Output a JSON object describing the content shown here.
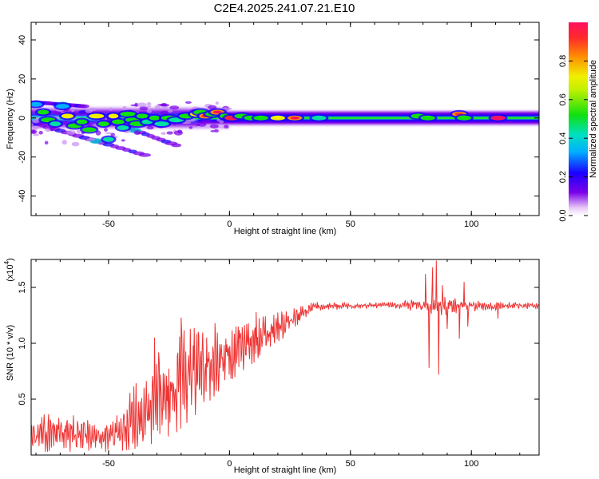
{
  "title": "C2E4.2025.241.07.21.E10",
  "colorscale": [
    "#e8c8f8",
    "#7b00e8",
    "#1a00ff",
    "#00b0ff",
    "#00e0a0",
    "#10e010",
    "#f0f000",
    "#ff9000",
    "#ff2a2a",
    "#ff1060"
  ],
  "line_color": "#ee3333",
  "chart_data": [
    {
      "type": "heatmap",
      "title": "C2E4.2025.241.07.21.E10",
      "xlabel": "Height of straight line (km)",
      "ylabel": "Frequency (Hz)",
      "xlim": [
        -82,
        128
      ],
      "ylim": [
        -50,
        49
      ],
      "xticks": [
        -50,
        0,
        50,
        100
      ],
      "yticks": [
        -40,
        -20,
        0,
        20,
        40
      ],
      "xtick_labels": [
        "-50",
        "0",
        "50",
        "100"
      ],
      "ytick_labels": [
        "-40",
        "-20",
        "0",
        "20",
        "40"
      ],
      "colorbar": {
        "label": "Normalized spectral amplitude",
        "range": [
          0,
          1
        ],
        "ticks": [
          0.0,
          0.2,
          0.4,
          0.6,
          0.8
        ],
        "tick_labels": [
          "0.0",
          "0.2",
          "0.4",
          "0.6",
          "0.8"
        ]
      },
      "main_band": {
        "center_freq": 0,
        "halfwidth_left": 7,
        "halfwidth_right": 5,
        "clean_from": 0
      },
      "blobs": [
        {
          "x": -80,
          "y": 7,
          "a": 0.3
        },
        {
          "x": -77,
          "y": 3,
          "a": 0.6
        },
        {
          "x": -75,
          "y": -1,
          "a": 0.55
        },
        {
          "x": -72,
          "y": -3,
          "a": 0.45
        },
        {
          "x": -69,
          "y": 6,
          "a": 0.3
        },
        {
          "x": -67,
          "y": 1,
          "a": 0.7
        },
        {
          "x": -64,
          "y": -4,
          "a": 0.6
        },
        {
          "x": -61,
          "y": -2,
          "a": 0.5
        },
        {
          "x": -58,
          "y": -6,
          "a": 0.55
        },
        {
          "x": -55,
          "y": 1,
          "a": 0.7
        },
        {
          "x": -52,
          "y": -3,
          "a": 0.55
        },
        {
          "x": -50,
          "y": -11,
          "a": 0.4
        },
        {
          "x": -48,
          "y": 1,
          "a": 0.65
        },
        {
          "x": -46,
          "y": -2,
          "a": 0.5
        },
        {
          "x": -44,
          "y": -5,
          "a": 0.45
        },
        {
          "x": -42,
          "y": 2,
          "a": 0.6
        },
        {
          "x": -40,
          "y": -1,
          "a": 0.55
        },
        {
          "x": -38,
          "y": -3,
          "a": 0.5
        },
        {
          "x": -36,
          "y": 1,
          "a": 0.55
        },
        {
          "x": -34,
          "y": -2,
          "a": 0.45
        },
        {
          "x": -31,
          "y": 0,
          "a": 0.5
        },
        {
          "x": -28,
          "y": -3,
          "a": 0.45
        },
        {
          "x": -25,
          "y": 0,
          "a": 0.5
        },
        {
          "x": -22,
          "y": -1,
          "a": 0.45
        },
        {
          "x": -18,
          "y": 1,
          "a": 0.55
        },
        {
          "x": -14,
          "y": 2,
          "a": 0.7
        },
        {
          "x": -12,
          "y": 3,
          "a": 0.5
        },
        {
          "x": -10,
          "y": 1,
          "a": 0.75
        },
        {
          "x": -7,
          "y": 2,
          "a": 0.6
        },
        {
          "x": -5,
          "y": 3,
          "a": 0.8
        },
        {
          "x": -2,
          "y": 1,
          "a": 0.6
        },
        {
          "x": 1,
          "y": 0,
          "a": 0.85
        },
        {
          "x": 5,
          "y": 1,
          "a": 0.55
        },
        {
          "x": 9,
          "y": 0,
          "a": 0.55
        },
        {
          "x": 13,
          "y": 0,
          "a": 0.6
        },
        {
          "x": 20,
          "y": 0,
          "a": 0.7
        },
        {
          "x": 27,
          "y": 0,
          "a": 0.8
        },
        {
          "x": 37,
          "y": 0,
          "a": 0.45
        },
        {
          "x": 78,
          "y": 1,
          "a": 0.55
        },
        {
          "x": 82,
          "y": 0,
          "a": 0.6
        },
        {
          "x": 95,
          "y": 2,
          "a": 0.75
        },
        {
          "x": 97,
          "y": 0,
          "a": 0.6
        },
        {
          "x": 111,
          "y": 0,
          "a": 0.95
        }
      ],
      "streaks": [
        {
          "x0": -80,
          "y0": -3,
          "x1": -35,
          "y1": -19
        },
        {
          "x0": -60,
          "y0": 3,
          "x1": -22,
          "y1": -14
        },
        {
          "x0": -80,
          "y0": 8,
          "x1": -60,
          "y1": 6
        }
      ]
    },
    {
      "type": "line",
      "xlabel": "Height of straight line (km)",
      "ylabel": "SNR (10 * v/v)",
      "y_multiplier_label": "(x10",
      "y_multiplier_exponent": "4",
      "xlim": [
        -82,
        128
      ],
      "ylim": [
        0,
        17500
      ],
      "xticks": [
        -50,
        0,
        50,
        100
      ],
      "yticks": [
        5000,
        10000,
        15000
      ],
      "xtick_labels": [
        "-50",
        "0",
        "50",
        "100"
      ],
      "ytick_labels": [
        "0.5",
        "1.0",
        "1.5"
      ],
      "profile": [
        {
          "x": -82,
          "lo": 300,
          "hi": 3500
        },
        {
          "x": -70,
          "lo": 300,
          "hi": 3800
        },
        {
          "x": -58,
          "lo": 200,
          "hi": 3500
        },
        {
          "x": -48,
          "lo": 300,
          "hi": 3000
        },
        {
          "x": -40,
          "lo": 500,
          "hi": 6000
        },
        {
          "x": -32,
          "lo": 1000,
          "hi": 8500
        },
        {
          "x": -22,
          "lo": 2000,
          "hi": 11000
        },
        {
          "x": -12,
          "lo": 4000,
          "hi": 11500
        },
        {
          "x": -3,
          "lo": 6000,
          "hi": 11500
        },
        {
          "x": 5,
          "lo": 7500,
          "hi": 11500
        },
        {
          "x": 15,
          "lo": 9000,
          "hi": 12500
        },
        {
          "x": 25,
          "lo": 11000,
          "hi": 13000
        },
        {
          "x": 35,
          "lo": 12800,
          "hi": 13700
        },
        {
          "x": 50,
          "lo": 13100,
          "hi": 13600
        },
        {
          "x": 70,
          "lo": 13100,
          "hi": 13700
        },
        {
          "x": 78,
          "lo": 12800,
          "hi": 14000
        },
        {
          "x": 88,
          "lo": 12500,
          "hi": 14200
        },
        {
          "x": 100,
          "lo": 12900,
          "hi": 13800
        },
        {
          "x": 112,
          "lo": 13000,
          "hi": 13700
        },
        {
          "x": 128,
          "lo": 13100,
          "hi": 13600
        }
      ],
      "spikes": [
        {
          "x": -20,
          "y": 12300
        },
        {
          "x": -31,
          "y": 10500
        },
        {
          "x": -15,
          "y": 9800
        },
        {
          "x": -6,
          "y": 11800
        },
        {
          "x": 4,
          "y": 11200
        },
        {
          "x": 11,
          "y": 12800
        },
        {
          "x": 81,
          "y": 16200
        },
        {
          "x": 82.5,
          "y": 7800
        },
        {
          "x": 84,
          "y": 16800
        },
        {
          "x": 85.5,
          "y": 17400
        },
        {
          "x": 86.5,
          "y": 7200
        },
        {
          "x": 88,
          "y": 15200
        },
        {
          "x": 90,
          "y": 11300
        },
        {
          "x": 95,
          "y": 10400
        },
        {
          "x": 97,
          "y": 15500
        },
        {
          "x": 98.5,
          "y": 11500
        },
        {
          "x": 111,
          "y": 12200
        }
      ]
    }
  ]
}
